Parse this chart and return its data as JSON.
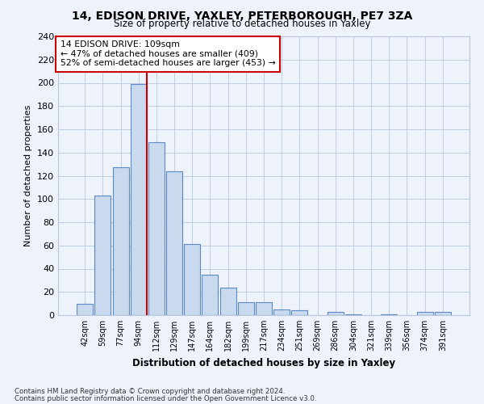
{
  "title1": "14, EDISON DRIVE, YAXLEY, PETERBOROUGH, PE7 3ZA",
  "title2": "Size of property relative to detached houses in Yaxley",
  "xlabel": "Distribution of detached houses by size in Yaxley",
  "ylabel": "Number of detached properties",
  "bar_labels": [
    "42sqm",
    "59sqm",
    "77sqm",
    "94sqm",
    "112sqm",
    "129sqm",
    "147sqm",
    "164sqm",
    "182sqm",
    "199sqm",
    "217sqm",
    "234sqm",
    "251sqm",
    "269sqm",
    "286sqm",
    "304sqm",
    "321sqm",
    "339sqm",
    "356sqm",
    "374sqm",
    "391sqm"
  ],
  "bar_values": [
    10,
    103,
    127,
    199,
    149,
    124,
    61,
    35,
    24,
    11,
    11,
    5,
    4,
    0,
    3,
    1,
    0,
    1,
    0,
    3,
    3
  ],
  "bar_color": "#c9d9ee",
  "bar_edge_color": "#5b8ac5",
  "vline_color": "#cc0000",
  "annotation_title": "14 EDISON DRIVE: 109sqm",
  "annotation_line1": "← 47% of detached houses are smaller (409)",
  "annotation_line2": "52% of semi-detached houses are larger (453) →",
  "annotation_box_color": "#cc0000",
  "ylim": [
    0,
    240
  ],
  "yticks": [
    0,
    20,
    40,
    60,
    80,
    100,
    120,
    140,
    160,
    180,
    200,
    220,
    240
  ],
  "footnote1": "Contains HM Land Registry data © Crown copyright and database right 2024.",
  "footnote2": "Contains public sector information licensed under the Open Government Licence v3.0.",
  "bg_color": "#eef2fb",
  "grid_color": "#b8c8de"
}
